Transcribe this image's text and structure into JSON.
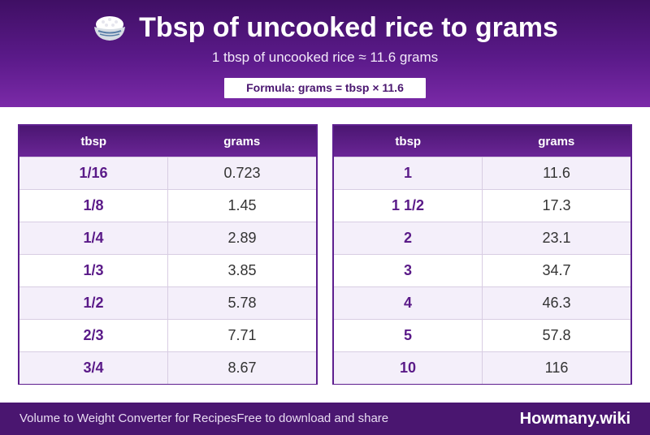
{
  "header": {
    "title": "Tbsp of uncooked rice to grams",
    "subtitle": "1 tbsp of uncooked rice ≈ 11.6 grams",
    "formula": "Formula: grams = tbsp × 11.6",
    "icon": "rice-bowl-icon"
  },
  "tables": [
    {
      "columns": [
        "tbsp",
        "grams"
      ],
      "rows": [
        {
          "tbsp": "1/16",
          "grams": "0.723"
        },
        {
          "tbsp": "1/8",
          "grams": "1.45"
        },
        {
          "tbsp": "1/4",
          "grams": "2.89"
        },
        {
          "tbsp": "1/3",
          "grams": "3.85"
        },
        {
          "tbsp": "1/2",
          "grams": "5.78"
        },
        {
          "tbsp": "2/3",
          "grams": "7.71"
        },
        {
          "tbsp": "3/4",
          "grams": "8.67"
        }
      ]
    },
    {
      "columns": [
        "tbsp",
        "grams"
      ],
      "rows": [
        {
          "tbsp": "1",
          "grams": "11.6"
        },
        {
          "tbsp": "1 1/2",
          "grams": "17.3"
        },
        {
          "tbsp": "2",
          "grams": "23.1"
        },
        {
          "tbsp": "3",
          "grams": "34.7"
        },
        {
          "tbsp": "4",
          "grams": "46.3"
        },
        {
          "tbsp": "5",
          "grams": "57.8"
        },
        {
          "tbsp": "10",
          "grams": "116"
        }
      ]
    }
  ],
  "footer": {
    "left_text": "Volume to Weight Converter for RecipesFree to download and share",
    "brand": "Howmany.wiki"
  },
  "colors": {
    "header_dark": "#3f0f64",
    "header_light": "#7b2aa8",
    "accent_text": "#5a1a88",
    "footer_bg": "#4a1670"
  }
}
